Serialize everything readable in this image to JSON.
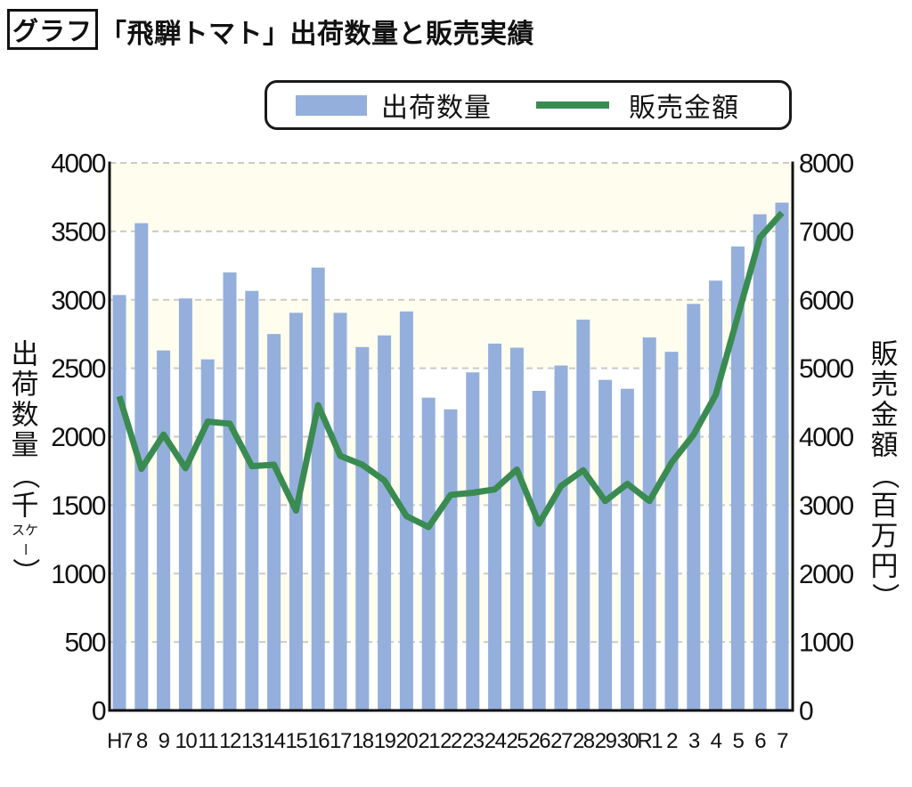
{
  "header": {
    "tag": "グラフ",
    "title": "「飛騨トマト」出荷数量と販売実績"
  },
  "legend": {
    "items": [
      {
        "label": "出荷数量",
        "type": "bar",
        "color": "#94AFDB"
      },
      {
        "label": "販売金額",
        "type": "line",
        "color": "#3A8B51"
      }
    ]
  },
  "chart_data": {
    "type": "bar+line",
    "title": "「飛騨トマト」出荷数量と販売実績",
    "categories": [
      "H7",
      "8",
      "9",
      "10",
      "11",
      "12",
      "13",
      "14",
      "15",
      "16",
      "17",
      "18",
      "19",
      "20",
      "21",
      "22",
      "23",
      "24",
      "25",
      "26",
      "27",
      "28",
      "29",
      "30",
      "R1",
      "2",
      "3",
      "4",
      "5",
      "6",
      "7"
    ],
    "series": [
      {
        "name": "出荷数量",
        "type": "bar",
        "axis": "left",
        "unit": "千ケース",
        "color": "#94AFDB",
        "values": [
          3035,
          3560,
          2630,
          3010,
          2565,
          3200,
          3065,
          2750,
          2905,
          3235,
          2905,
          2655,
          2740,
          2915,
          2285,
          2200,
          2470,
          2680,
          2650,
          2335,
          2520,
          2855,
          2415,
          2350,
          2725,
          2620,
          2970,
          3140,
          3390,
          3625,
          3710
        ]
      },
      {
        "name": "販売金額",
        "type": "line",
        "axis": "right",
        "unit": "百万円",
        "color": "#3A8B51",
        "values": [
          4590,
          3530,
          4030,
          3540,
          4220,
          4190,
          3570,
          3590,
          2920,
          4460,
          3720,
          3590,
          3360,
          2840,
          2680,
          3150,
          3180,
          3230,
          3520,
          2730,
          3280,
          3510,
          3060,
          3310,
          3060,
          3620,
          4030,
          4610,
          5760,
          6910,
          7270
        ]
      }
    ],
    "axes": {
      "left": {
        "label": "出荷数量（千ケース）",
        "label_display": {
          "main": "出荷数量（千",
          "small_pair": "スケ",
          "dash": "ー",
          "close": "）"
        },
        "min": 0,
        "max": 4000,
        "step": 500,
        "ticks": [
          4000,
          3500,
          3000,
          2500,
          2000,
          1500,
          1000,
          500,
          0
        ]
      },
      "right": {
        "label": "販売金額（百万円）",
        "min": 0,
        "max": 8000,
        "step": 1000,
        "ticks": [
          8000,
          7000,
          6000,
          5000,
          4000,
          3000,
          2000,
          1000,
          0
        ]
      }
    },
    "style": {
      "band_colors": [
        "#FFFDEE",
        "#FFFFFF"
      ],
      "gridline_color": "#CBCBC6",
      "axis_color": "#111111",
      "bar_color": "#94AFDB",
      "line_color": "#3A8B51"
    },
    "legend_position": "top",
    "grid": "dashed-horizontal"
  }
}
